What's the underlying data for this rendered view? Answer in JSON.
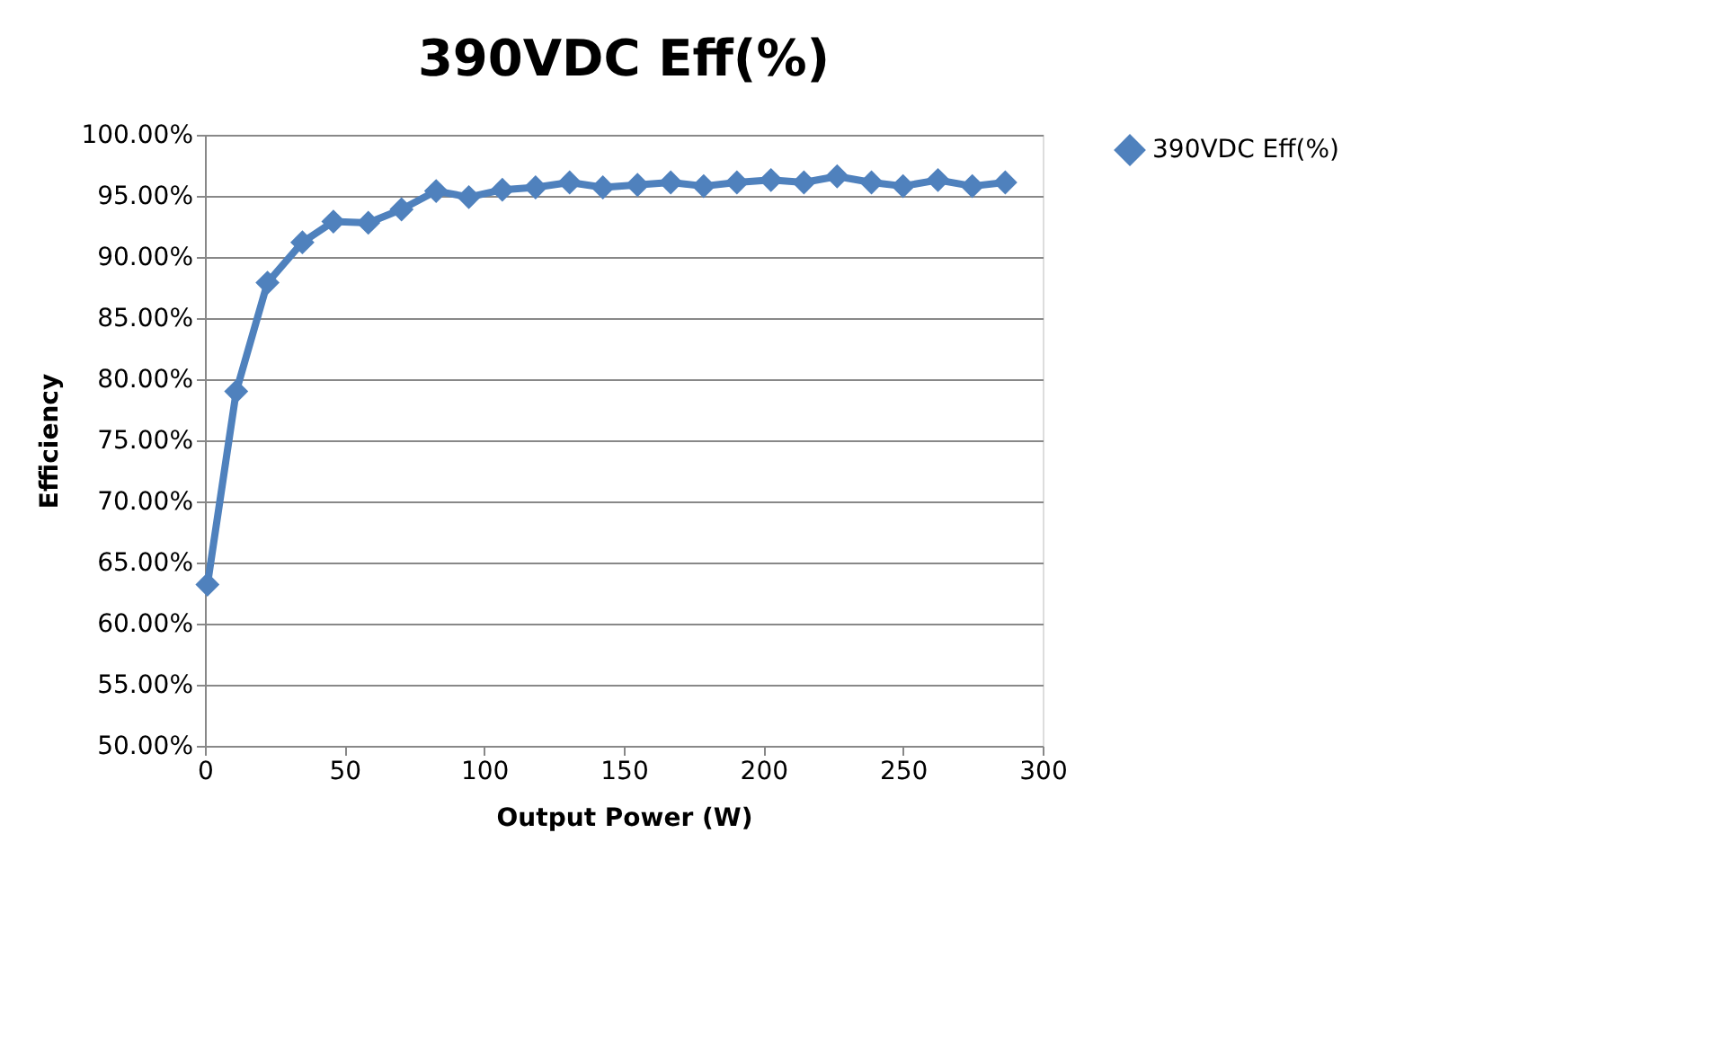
{
  "chart_data": {
    "type": "line",
    "title": "390VDC Eff(%)",
    "xlabel": "Output Power (W)",
    "ylabel": "Efficiency",
    "series": [
      {
        "name": "390VDC Eff(%)",
        "color": "#4f81bd",
        "x": [
          0.9,
          11.2,
          22.4,
          34.9,
          46,
          58.5,
          70.4,
          82.8,
          94.5,
          106.5,
          118.4,
          130.6,
          142.5,
          154.9,
          166.8,
          178.6,
          190.5,
          202.7,
          214.5,
          226.4,
          238.7,
          250,
          262.5,
          274.8,
          286.6
        ],
        "values": [
          63.2,
          79.0,
          87.9,
          91.2,
          92.9,
          92.8,
          93.9,
          95.4,
          94.9,
          95.5,
          95.7,
          96.1,
          95.7,
          95.9,
          96.1,
          95.8,
          96.1,
          96.3,
          96.1,
          96.6,
          96.1,
          95.8,
          96.3,
          95.8,
          96.1
        ]
      }
    ],
    "xlim": [
      0,
      300
    ],
    "xticks": [
      0,
      50,
      100,
      150,
      200,
      250,
      300
    ],
    "ylim": [
      50,
      100
    ],
    "yticks": [
      {
        "value": 50,
        "label": "50.00%"
      },
      {
        "value": 55,
        "label": "55.00%"
      },
      {
        "value": 60,
        "label": "60.00%"
      },
      {
        "value": 65,
        "label": "65.00%"
      },
      {
        "value": 70,
        "label": "70.00%"
      },
      {
        "value": 75,
        "label": "75.00%"
      },
      {
        "value": 80,
        "label": "80.00%"
      },
      {
        "value": 85,
        "label": "85.00%"
      },
      {
        "value": 90,
        "label": "90.00%"
      },
      {
        "value": 95,
        "label": "95.00%"
      },
      {
        "value": 100,
        "label": "100.00%"
      }
    ],
    "grid": "y",
    "legend": "right",
    "marker": "diamond",
    "line_style": "solid"
  }
}
